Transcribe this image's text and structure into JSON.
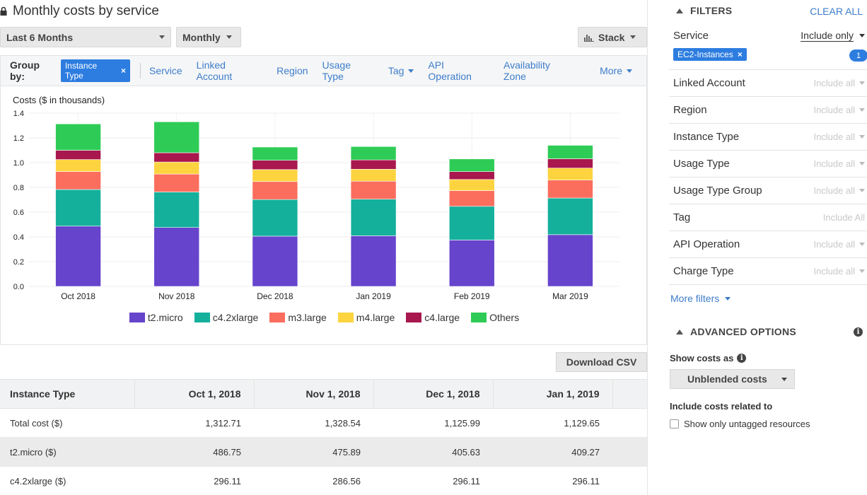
{
  "header": {
    "title": "Monthly costs by service"
  },
  "controls": {
    "range_label": "Last 6 Months",
    "granularity_label": "Monthly",
    "chart_style_label": "Stack"
  },
  "group_by": {
    "label": "Group by:",
    "selected": "Instance Type",
    "options": [
      "Service",
      "Linked Account",
      "Region",
      "Usage Type",
      "Tag",
      "API Operation",
      "Availability Zone",
      "More"
    ]
  },
  "chart_data": {
    "type": "bar",
    "stacked": true,
    "title": "",
    "ylabel": "Costs ($ in thousands)",
    "xlabel": "",
    "ylim": [
      0,
      1.4
    ],
    "yticks": [
      "0.0",
      "0.2",
      "0.4",
      "0.6",
      "0.8",
      "1.0",
      "1.2",
      "1.4"
    ],
    "categories": [
      "Oct 2018",
      "Nov 2018",
      "Dec 2018",
      "Jan 2019",
      "Feb 2019",
      "Mar 2019"
    ],
    "series": [
      {
        "name": "t2.micro",
        "color": "#6644cc",
        "values": [
          0.487,
          0.476,
          0.406,
          0.409,
          0.375,
          0.418
        ]
      },
      {
        "name": "c4.2xlarge",
        "color": "#14b09c",
        "values": [
          0.296,
          0.287,
          0.296,
          0.296,
          0.272,
          0.296
        ]
      },
      {
        "name": "m3.large",
        "color": "#fb6d5d",
        "values": [
          0.145,
          0.145,
          0.145,
          0.145,
          0.127,
          0.145
        ]
      },
      {
        "name": "m4.large",
        "color": "#fdd440",
        "values": [
          0.097,
          0.097,
          0.097,
          0.097,
          0.09,
          0.097
        ]
      },
      {
        "name": "c4.large",
        "color": "#a8174e",
        "values": [
          0.075,
          0.075,
          0.075,
          0.075,
          0.064,
          0.075
        ]
      },
      {
        "name": "Others",
        "color": "#2ecc56",
        "values": [
          0.213,
          0.25,
          0.107,
          0.108,
          0.102,
          0.109
        ]
      }
    ]
  },
  "download_label": "Download CSV",
  "table": {
    "headers": [
      "Instance Type",
      "Oct 1, 2018",
      "Nov 1, 2018",
      "Dec 1, 2018",
      "Jan 1, 2019"
    ],
    "rows": [
      [
        "Total cost ($)",
        "1,312.71",
        "1,328.54",
        "1,125.99",
        "1,129.65"
      ],
      [
        "t2.micro ($)",
        "486.75",
        "475.89",
        "405.63",
        "409.27"
      ],
      [
        "c4.2xlarge ($)",
        "296.11",
        "286.56",
        "296.11",
        "296.11"
      ]
    ]
  },
  "filters": {
    "heading": "FILTERS",
    "clear_all": "CLEAR ALL",
    "service": {
      "name": "Service",
      "mode": "Include only",
      "chip": "EC2-Instances",
      "count": "1"
    },
    "rows": [
      {
        "name": "Linked Account",
        "mode": "Include all"
      },
      {
        "name": "Region",
        "mode": "Include all"
      },
      {
        "name": "Instance Type",
        "mode": "Include all"
      },
      {
        "name": "Usage Type",
        "mode": "Include all"
      },
      {
        "name": "Usage Type Group",
        "mode": "Include all"
      },
      {
        "name": "Tag",
        "mode": "Include All"
      },
      {
        "name": "API Operation",
        "mode": "Include all"
      },
      {
        "name": "Charge Type",
        "mode": "Include all"
      }
    ],
    "more_filters": "More filters"
  },
  "advanced": {
    "heading": "ADVANCED OPTIONS",
    "show_costs_label": "Show costs as",
    "show_costs_value": "Unblended costs",
    "include_label": "Include costs related to",
    "untagged_label": "Show only untagged resources"
  },
  "colors": {
    "accent": "#2d7de0",
    "link": "#3d7dca"
  }
}
